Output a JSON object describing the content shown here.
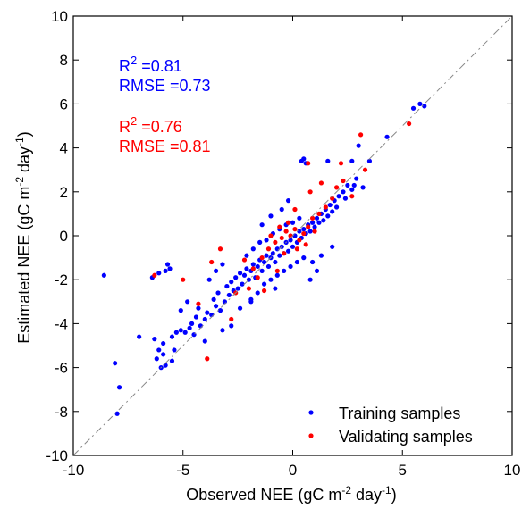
{
  "chart_data": {
    "type": "scatter",
    "xlabel": "Observed NEE (gC m-2 day-1)",
    "ylabel": "Estimated NEE (gC m-2 day-1)",
    "xlim": [
      -10,
      10
    ],
    "ylim": [
      -10,
      10
    ],
    "x_ticks": [
      "-10",
      "-5",
      "0",
      "5",
      "10"
    ],
    "y_ticks": [
      "-10",
      "-8",
      "-6",
      "-4",
      "-2",
      "0",
      "2",
      "4",
      "6",
      "8",
      "10"
    ],
    "grid": false,
    "legend_position": "bottom-right",
    "reference_line": "1:1",
    "colors": {
      "training": "#0000ff",
      "validating": "#ff0000"
    },
    "annotations": {
      "training": {
        "r2_prefix": "R",
        "r2_sup": "2",
        "r2_value": " =0.81",
        "rmse": "RMSE =0.73"
      },
      "validating": {
        "r2_prefix": "R",
        "r2_sup": "2",
        "r2_value": " =0.76",
        "rmse": "RMSE =0.81"
      }
    },
    "series": [
      {
        "name": "Training samples",
        "color": "#0000ff",
        "points": [
          [
            -8.6,
            -1.8
          ],
          [
            -8.1,
            -5.8
          ],
          [
            -7.9,
            -6.9
          ],
          [
            -8.0,
            -8.1
          ],
          [
            -6.4,
            -1.9
          ],
          [
            -6.1,
            -1.7
          ],
          [
            -5.8,
            -1.6
          ],
          [
            -5.6,
            -1.5
          ],
          [
            -5.7,
            -1.3
          ],
          [
            -6.2,
            -5.6
          ],
          [
            -6.0,
            -6.0
          ],
          [
            -5.8,
            -5.9
          ],
          [
            -5.5,
            -5.7
          ],
          [
            -5.9,
            -5.4
          ],
          [
            -6.1,
            -5.2
          ],
          [
            -5.5,
            -4.6
          ],
          [
            -5.3,
            -4.4
          ],
          [
            -5.1,
            -4.3
          ],
          [
            -4.9,
            -4.4
          ],
          [
            -4.7,
            -4.2
          ],
          [
            -4.5,
            -4.5
          ],
          [
            -4.6,
            -4.0
          ],
          [
            -4.4,
            -3.7
          ],
          [
            -4.2,
            -4.1
          ],
          [
            -4.0,
            -3.8
          ],
          [
            -3.9,
            -3.5
          ],
          [
            -4.3,
            -3.3
          ],
          [
            -3.7,
            -3.6
          ],
          [
            -3.5,
            -3.2
          ],
          [
            -3.3,
            -3.4
          ],
          [
            -3.6,
            -2.9
          ],
          [
            -3.1,
            -3.0
          ],
          [
            -3.4,
            -2.6
          ],
          [
            -2.9,
            -2.7
          ],
          [
            -3.0,
            -2.3
          ],
          [
            -2.8,
            -2.1
          ],
          [
            -2.7,
            -2.5
          ],
          [
            -2.5,
            -2.4
          ],
          [
            -2.3,
            -2.2
          ],
          [
            -2.6,
            -1.9
          ],
          [
            -2.4,
            -1.7
          ],
          [
            -2.2,
            -1.8
          ],
          [
            -2.0,
            -2.0
          ],
          [
            -2.1,
            -1.5
          ],
          [
            -1.9,
            -1.6
          ],
          [
            -1.8,
            -1.3
          ],
          [
            -1.7,
            -1.9
          ],
          [
            -1.6,
            -1.4
          ],
          [
            -1.5,
            -1.1
          ],
          [
            -1.4,
            -1.6
          ],
          [
            -1.3,
            -1.2
          ],
          [
            -1.2,
            -0.9
          ],
          [
            -1.1,
            -1.4
          ],
          [
            -1.0,
            -1.0
          ],
          [
            -0.9,
            -0.8
          ],
          [
            -0.8,
            -1.2
          ],
          [
            -0.7,
            -0.6
          ],
          [
            -0.6,
            -0.9
          ],
          [
            -0.5,
            -0.5
          ],
          [
            -0.4,
            -0.8
          ],
          [
            -0.3,
            -0.3
          ],
          [
            -0.2,
            -0.7
          ],
          [
            -0.1,
            -0.2
          ],
          [
            0.0,
            -0.5
          ],
          [
            0.1,
            0.0
          ],
          [
            0.2,
            -0.3
          ],
          [
            0.3,
            0.2
          ],
          [
            0.4,
            -0.1
          ],
          [
            0.5,
            0.3
          ],
          [
            0.6,
            0.1
          ],
          [
            0.7,
            0.5
          ],
          [
            0.8,
            0.2
          ],
          [
            0.9,
            0.6
          ],
          [
            1.0,
            0.4
          ],
          [
            1.1,
            0.8
          ],
          [
            1.2,
            0.6
          ],
          [
            1.3,
            1.0
          ],
          [
            1.4,
            0.7
          ],
          [
            1.5,
            1.2
          ],
          [
            1.6,
            0.9
          ],
          [
            1.7,
            1.4
          ],
          [
            1.8,
            1.1
          ],
          [
            1.9,
            1.6
          ],
          [
            2.0,
            1.3
          ],
          [
            2.1,
            1.8
          ],
          [
            2.3,
            2.0
          ],
          [
            2.5,
            2.3
          ],
          [
            2.4,
            1.7
          ],
          [
            2.7,
            2.1
          ],
          [
            2.9,
            2.6
          ],
          [
            -1.5,
            -0.3
          ],
          [
            -1.2,
            -0.2
          ],
          [
            -0.9,
            0.1
          ],
          [
            -0.6,
            0.3
          ],
          [
            -0.3,
            0.5
          ],
          [
            0.0,
            0.6
          ],
          [
            0.3,
            0.8
          ],
          [
            -1.8,
            -0.6
          ],
          [
            -2.1,
            -0.9
          ],
          [
            -1.3,
            -2.2
          ],
          [
            -1.0,
            -2.0
          ],
          [
            -0.7,
            -1.8
          ],
          [
            -0.4,
            -1.6
          ],
          [
            -0.1,
            -1.4
          ],
          [
            0.2,
            -1.2
          ],
          [
            0.5,
            -1.0
          ],
          [
            -1.6,
            -2.6
          ],
          [
            -1.9,
            -2.9
          ],
          [
            0.4,
            3.4
          ],
          [
            0.6,
            3.3
          ],
          [
            0.5,
            3.5
          ],
          [
            1.6,
            3.4
          ],
          [
            2.7,
            3.4
          ],
          [
            3.0,
            4.1
          ],
          [
            3.5,
            3.4
          ],
          [
            2.8,
            2.3
          ],
          [
            3.2,
            2.2
          ],
          [
            4.3,
            4.5
          ],
          [
            5.5,
            5.8
          ],
          [
            5.8,
            6.0
          ],
          [
            6.0,
            5.9
          ],
          [
            -1.4,
            0.5
          ],
          [
            -1.0,
            0.9
          ],
          [
            -0.5,
            1.2
          ],
          [
            0.9,
            -1.2
          ],
          [
            1.3,
            -0.9
          ],
          [
            1.8,
            -0.5
          ],
          [
            -3.8,
            -2.0
          ],
          [
            -3.5,
            -1.6
          ],
          [
            -3.2,
            -1.3
          ],
          [
            -4.8,
            -3.0
          ],
          [
            -5.1,
            -3.4
          ],
          [
            -2.8,
            -4.1
          ],
          [
            -2.4,
            -3.3
          ],
          [
            -1.9,
            -3.0
          ],
          [
            -0.8,
            -2.4
          ],
          [
            -5.9,
            -4.9
          ],
          [
            -6.3,
            -4.7
          ],
          [
            -5.4,
            -5.2
          ],
          [
            -7.0,
            -4.6
          ],
          [
            -4.0,
            -4.8
          ],
          [
            -3.2,
            -4.3
          ],
          [
            0.8,
            -2.0
          ],
          [
            1.1,
            -1.6
          ],
          [
            -0.2,
            1.6
          ]
        ]
      },
      {
        "name": "Validating samples",
        "color": "#ff0000",
        "points": [
          [
            -6.3,
            -1.8
          ],
          [
            -5.0,
            -2.0
          ],
          [
            -3.9,
            -5.6
          ],
          [
            -4.3,
            -3.1
          ],
          [
            -3.7,
            -1.2
          ],
          [
            -3.3,
            -0.6
          ],
          [
            -2.6,
            -2.6
          ],
          [
            -2.2,
            -1.1
          ],
          [
            -1.8,
            -1.5
          ],
          [
            -1.4,
            -1.0
          ],
          [
            -1.1,
            -0.6
          ],
          [
            -0.8,
            -0.3
          ],
          [
            -0.5,
            -0.1
          ],
          [
            -0.3,
            0.2
          ],
          [
            -0.1,
            0.0
          ],
          [
            0.1,
            0.3
          ],
          [
            0.3,
            -0.2
          ],
          [
            0.5,
            0.1
          ],
          [
            0.7,
            0.4
          ],
          [
            0.9,
            0.8
          ],
          [
            1.2,
            1.0
          ],
          [
            1.5,
            1.3
          ],
          [
            0.2,
            -0.6
          ],
          [
            -0.4,
            -0.8
          ],
          [
            -1.6,
            -1.9
          ],
          [
            -2.0,
            -2.4
          ],
          [
            0.6,
            -0.4
          ],
          [
            1.0,
            0.2
          ],
          [
            0.1,
            1.2
          ],
          [
            -0.2,
            0.6
          ],
          [
            -0.6,
            0.4
          ],
          [
            -1.0,
            0.0
          ],
          [
            0.8,
            2.0
          ],
          [
            1.3,
            2.4
          ],
          [
            1.8,
            1.7
          ],
          [
            2.0,
            2.2
          ],
          [
            2.3,
            2.5
          ],
          [
            2.7,
            1.8
          ],
          [
            3.1,
            4.6
          ],
          [
            5.3,
            5.1
          ],
          [
            0.7,
            3.3
          ],
          [
            2.2,
            3.3
          ],
          [
            3.3,
            3.0
          ],
          [
            -0.7,
            -1.6
          ],
          [
            -1.3,
            -2.5
          ],
          [
            -2.8,
            -3.8
          ]
        ]
      }
    ]
  }
}
